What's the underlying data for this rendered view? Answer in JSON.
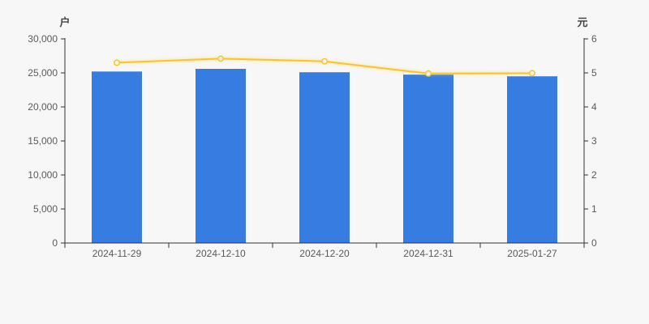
{
  "chart_data": {
    "type": "bar+line",
    "categories": [
      "2024-11-29",
      "2024-12-10",
      "2024-12-20",
      "2024-12-31",
      "2025-01-27"
    ],
    "series": [
      {
        "type": "bar",
        "axis": "left",
        "values": [
          25200,
          25600,
          25100,
          24750,
          24500
        ],
        "color": "#377CE0"
      },
      {
        "type": "line",
        "axis": "right",
        "values": [
          5.3,
          5.42,
          5.34,
          4.98,
          4.99
        ],
        "color": "#FBC32C",
        "marker_fill": "#FFFFFF"
      }
    ],
    "left_axis": {
      "name": "户",
      "min": 0,
      "max": 30000,
      "tick_interval": 5000,
      "tick_labels": [
        "0",
        "5,000",
        "10,000",
        "15,000",
        "20,000",
        "25,000",
        "30,000"
      ]
    },
    "right_axis": {
      "name": "元",
      "min": 0,
      "max": 6,
      "tick_interval": 1,
      "tick_labels": [
        "0",
        "1",
        "2",
        "3",
        "4",
        "5",
        "6"
      ]
    },
    "title": "",
    "legend": false,
    "grid": false,
    "colors": {
      "background": "#F7F7F7",
      "axis_line": "#333333",
      "tick_label": "#5A5A5A",
      "axis_name": "#444444"
    }
  }
}
